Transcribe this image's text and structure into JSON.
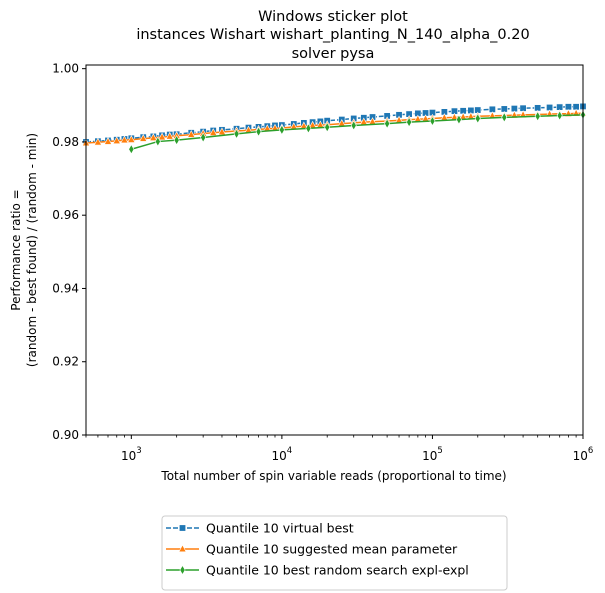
{
  "chart_data": {
    "type": "line",
    "title_lines": [
      "Windows sticker plot",
      "instances Wishart wishart_planting_N_140_alpha_0.20",
      "solver pysa"
    ],
    "xlabel": "Total number of spin variable reads (proportional to time)",
    "ylabel_lines": [
      "Performance ratio =",
      "(random - best found) / (random - min)"
    ],
    "xscale": "log",
    "xlim": [
      500,
      1000000
    ],
    "ylim": [
      0.9,
      1.001
    ],
    "xticks": [
      {
        "value": 1000,
        "base": "10",
        "exp": "3"
      },
      {
        "value": 10000,
        "base": "10",
        "exp": "4"
      },
      {
        "value": 100000,
        "base": "10",
        "exp": "5"
      },
      {
        "value": 1000000,
        "base": "10",
        "exp": "6"
      }
    ],
    "yticks": [
      {
        "value": 0.9,
        "label": "0.90"
      },
      {
        "value": 0.92,
        "label": "0.92"
      },
      {
        "value": 0.94,
        "label": "0.94"
      },
      {
        "value": 0.96,
        "label": "0.96"
      },
      {
        "value": 0.98,
        "label": "0.98"
      },
      {
        "value": 1.0,
        "label": "1.00"
      }
    ],
    "grid": false,
    "legend_position": "bottom-center-outside",
    "series": [
      {
        "name": "Quantile 10 virtual best",
        "color": "#1f77b4",
        "marker": "square",
        "linestyle": "dashed",
        "x": [
          500,
          600,
          700,
          800,
          900,
          1000,
          1200,
          1400,
          1600,
          1800,
          2000,
          2500,
          3000,
          3500,
          4000,
          5000,
          6000,
          7000,
          8000,
          9000,
          10000,
          12000,
          14000,
          16000,
          18000,
          20000,
          25000,
          30000,
          35000,
          40000,
          50000,
          60000,
          70000,
          80000,
          90000,
          100000,
          120000,
          140000,
          160000,
          180000,
          200000,
          250000,
          300000,
          350000,
          400000,
          500000,
          600000,
          700000,
          800000,
          900000,
          1000000
        ],
        "y": [
          0.98,
          0.9802,
          0.9804,
          0.9806,
          0.9808,
          0.981,
          0.9813,
          0.9815,
          0.9818,
          0.982,
          0.9821,
          0.9825,
          0.9828,
          0.9831,
          0.9833,
          0.9836,
          0.9839,
          0.9841,
          0.9843,
          0.9845,
          0.9846,
          0.9849,
          0.9852,
          0.9854,
          0.9856,
          0.9858,
          0.9861,
          0.9864,
          0.9866,
          0.9868,
          0.9871,
          0.9874,
          0.9876,
          0.9878,
          0.9879,
          0.988,
          0.9882,
          0.9884,
          0.9885,
          0.9886,
          0.9887,
          0.9889,
          0.989,
          0.9891,
          0.9892,
          0.9893,
          0.9894,
          0.9895,
          0.9896,
          0.9896,
          0.9897
        ]
      },
      {
        "name": "Quantile 10 suggested mean parameter",
        "color": "#ff7f0e",
        "marker": "triangle-up",
        "linestyle": "solid",
        "x": [
          500,
          600,
          700,
          800,
          900,
          1000,
          1200,
          1400,
          1600,
          1800,
          2000,
          2500,
          3000,
          3500,
          4000,
          5000,
          6000,
          7000,
          8000,
          9000,
          10000,
          12000,
          14000,
          16000,
          18000,
          20000,
          25000,
          30000,
          35000,
          40000,
          50000,
          60000,
          70000,
          80000,
          90000,
          100000,
          120000,
          140000,
          160000,
          180000,
          200000,
          250000,
          300000,
          350000,
          400000,
          500000,
          600000,
          700000,
          800000,
          900000,
          1000000
        ],
        "y": [
          0.9797,
          0.9799,
          0.9801,
          0.9803,
          0.9805,
          0.9806,
          0.9809,
          0.9811,
          0.9813,
          0.9815,
          0.9817,
          0.982,
          0.9823,
          0.9825,
          0.9827,
          0.983,
          0.9832,
          0.9834,
          0.9836,
          0.9837,
          0.9838,
          0.9841,
          0.9843,
          0.9845,
          0.9846,
          0.9847,
          0.985,
          0.9852,
          0.9854,
          0.9855,
          0.9857,
          0.9859,
          0.9861,
          0.9862,
          0.9863,
          0.9864,
          0.9866,
          0.9867,
          0.9868,
          0.9869,
          0.987,
          0.9871,
          0.9872,
          0.9873,
          0.9874,
          0.9875,
          0.9876,
          0.9877,
          0.9877,
          0.9878,
          0.9878
        ]
      },
      {
        "name": "Quantile 10  best random search expl-expl",
        "color": "#2ca02c",
        "marker": "thin-diamond",
        "linestyle": "solid",
        "x": [
          1000,
          1500,
          2000,
          3000,
          5000,
          7000,
          10000,
          15000,
          20000,
          30000,
          50000,
          70000,
          100000,
          150000,
          200000,
          300000,
          500000,
          700000,
          1000000
        ],
        "y": [
          0.978,
          0.9801,
          0.9805,
          0.9812,
          0.9822,
          0.9828,
          0.9833,
          0.9837,
          0.984,
          0.9845,
          0.985,
          0.9854,
          0.9857,
          0.9861,
          0.9864,
          0.9867,
          0.987,
          0.9872,
          0.9874
        ]
      }
    ]
  }
}
